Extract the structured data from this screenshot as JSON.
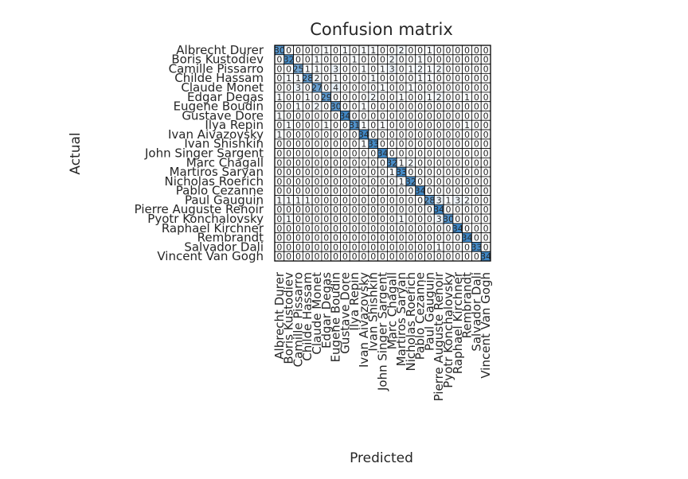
{
  "chart_data": {
    "type": "heatmap",
    "title": "Confusion matrix",
    "xlabel": "Predicted",
    "ylabel": "Actual",
    "labels": [
      "Albrecht Durer",
      "Boris Kustodiev",
      "Camille Pissarro",
      "Childe Hassam",
      "Claude Monet",
      "Edgar Degas",
      "Eugene Boudin",
      "Gustave Dore",
      "Ilya Repin",
      "Ivan Aivazovsky",
      "Ivan Shishkin",
      "John Singer Sargent",
      "Marc Chagall",
      "Martiros Saryan",
      "Nicholas Roerich",
      "Pablo Cezanne",
      "Paul Gauguin",
      "Pierre Auguste Renoir",
      "Pyotr Konchalovsky",
      "Raphael Kirchner",
      "Rembrandt",
      "Salvador Dali",
      "Vincent Van Gogh"
    ],
    "matrix": [
      [
        30,
        0,
        0,
        0,
        0,
        1,
        0,
        1,
        0,
        1,
        1,
        0,
        0,
        2,
        0,
        0,
        1,
        0,
        0,
        0,
        0,
        0,
        0
      ],
      [
        0,
        32,
        0,
        0,
        1,
        0,
        0,
        0,
        1,
        0,
        0,
        0,
        2,
        0,
        0,
        1,
        0,
        0,
        0,
        0,
        0,
        0,
        0
      ],
      [
        0,
        0,
        25,
        1,
        1,
        0,
        3,
        0,
        0,
        1,
        0,
        1,
        3,
        0,
        1,
        2,
        1,
        2,
        0,
        0,
        0,
        0,
        0
      ],
      [
        0,
        1,
        1,
        28,
        2,
        0,
        1,
        0,
        0,
        0,
        1,
        0,
        0,
        0,
        0,
        1,
        1,
        0,
        0,
        0,
        0,
        0,
        0
      ],
      [
        0,
        0,
        3,
        0,
        27,
        0,
        4,
        0,
        0,
        0,
        0,
        1,
        0,
        0,
        1,
        0,
        0,
        0,
        0,
        0,
        0,
        0,
        0
      ],
      [
        1,
        0,
        0,
        1,
        0,
        29,
        0,
        0,
        0,
        0,
        2,
        0,
        0,
        1,
        0,
        0,
        1,
        2,
        0,
        0,
        1,
        0,
        0
      ],
      [
        0,
        0,
        1,
        0,
        2,
        0,
        30,
        0,
        0,
        1,
        0,
        0,
        0,
        0,
        0,
        0,
        0,
        0,
        0,
        0,
        0,
        0,
        0
      ],
      [
        1,
        0,
        0,
        0,
        0,
        0,
        0,
        34,
        0,
        0,
        0,
        0,
        0,
        0,
        0,
        0,
        0,
        0,
        0,
        0,
        0,
        0,
        0
      ],
      [
        0,
        1,
        0,
        0,
        0,
        1,
        0,
        0,
        31,
        1,
        0,
        1,
        0,
        0,
        0,
        0,
        0,
        0,
        0,
        0,
        1,
        0,
        0
      ],
      [
        1,
        0,
        0,
        0,
        0,
        0,
        0,
        0,
        0,
        34,
        0,
        0,
        0,
        0,
        0,
        0,
        0,
        0,
        0,
        0,
        0,
        0,
        0
      ],
      [
        0,
        0,
        0,
        0,
        0,
        0,
        0,
        0,
        0,
        1,
        33,
        0,
        0,
        0,
        0,
        0,
        0,
        0,
        0,
        0,
        0,
        0,
        0
      ],
      [
        0,
        0,
        0,
        0,
        0,
        0,
        0,
        0,
        0,
        0,
        0,
        34,
        0,
        0,
        0,
        0,
        0,
        0,
        0,
        0,
        0,
        0,
        0
      ],
      [
        0,
        0,
        0,
        0,
        0,
        0,
        0,
        0,
        0,
        0,
        0,
        0,
        32,
        1,
        2,
        0,
        0,
        0,
        0,
        0,
        0,
        0,
        0
      ],
      [
        0,
        0,
        0,
        0,
        0,
        0,
        0,
        0,
        0,
        0,
        0,
        0,
        1,
        33,
        0,
        0,
        0,
        0,
        0,
        0,
        0,
        0,
        0
      ],
      [
        0,
        0,
        0,
        0,
        0,
        0,
        0,
        0,
        0,
        0,
        0,
        0,
        0,
        1,
        32,
        0,
        0,
        0,
        0,
        0,
        0,
        0,
        0
      ],
      [
        0,
        0,
        0,
        0,
        0,
        0,
        0,
        0,
        0,
        0,
        0,
        0,
        0,
        0,
        0,
        34,
        0,
        0,
        0,
        0,
        0,
        0,
        0
      ],
      [
        1,
        1,
        1,
        1,
        0,
        0,
        0,
        0,
        0,
        0,
        0,
        0,
        0,
        0,
        0,
        0,
        28,
        3,
        1,
        3,
        2,
        0,
        0
      ],
      [
        0,
        0,
        0,
        0,
        0,
        0,
        0,
        0,
        0,
        0,
        0,
        0,
        0,
        0,
        0,
        0,
        0,
        34,
        0,
        0,
        0,
        0,
        0
      ],
      [
        0,
        1,
        0,
        0,
        0,
        0,
        0,
        0,
        0,
        0,
        0,
        0,
        0,
        1,
        0,
        0,
        0,
        3,
        30,
        0,
        0,
        0,
        0
      ],
      [
        0,
        0,
        0,
        0,
        0,
        0,
        0,
        0,
        0,
        0,
        0,
        0,
        0,
        0,
        0,
        0,
        0,
        0,
        0,
        34,
        0,
        0,
        0
      ],
      [
        0,
        0,
        0,
        0,
        0,
        0,
        0,
        0,
        0,
        0,
        0,
        0,
        0,
        0,
        0,
        0,
        0,
        0,
        0,
        0,
        34,
        0,
        0
      ],
      [
        0,
        0,
        0,
        0,
        0,
        0,
        0,
        0,
        0,
        0,
        0,
        0,
        0,
        0,
        0,
        0,
        0,
        1,
        0,
        0,
        0,
        33,
        0
      ],
      [
        0,
        0,
        0,
        0,
        0,
        0,
        0,
        0,
        0,
        0,
        0,
        0,
        0,
        0,
        0,
        0,
        0,
        0,
        0,
        0,
        0,
        0,
        34
      ]
    ],
    "vmin": 0,
    "vmax": 34,
    "grid": true,
    "colormap": {
      "low": "#ffffff",
      "high": "#3f86c4"
    }
  }
}
